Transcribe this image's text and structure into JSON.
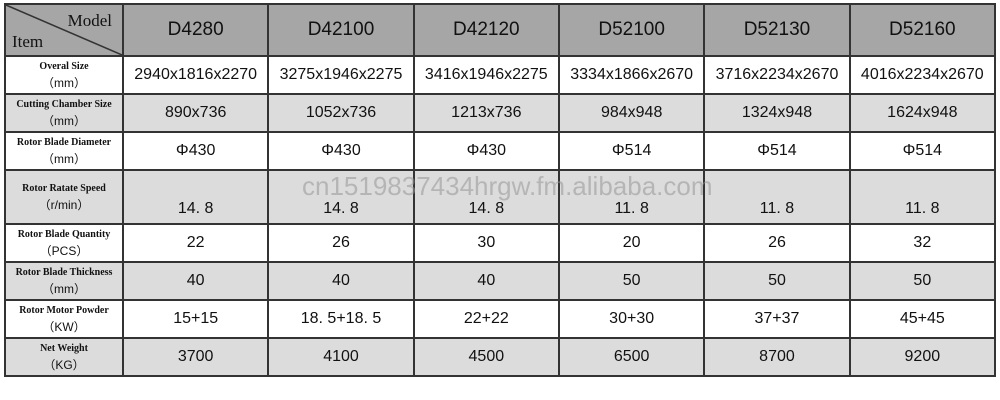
{
  "header": {
    "model_label": "Model",
    "item_label": "Item",
    "models": [
      "D4280",
      "D42100",
      "D42120",
      "D52100",
      "D52130",
      "D52160"
    ]
  },
  "rows": [
    {
      "label": "Overal Size",
      "unit": "（mm）",
      "values": [
        "2940x1816x2270",
        "3275x1946x2275",
        "3416x1946x2275",
        "3334x1866x2670",
        "3716x2234x2670",
        "4016x2234x2670"
      ]
    },
    {
      "label": "Cutting Chamber Size",
      "unit": "（mm）",
      "values": [
        "890x736",
        "1052x736",
        "1213x736",
        "984x948",
        "1324x948",
        "1624x948"
      ]
    },
    {
      "label": "Rotor Blade Diameter",
      "unit": "（mm）",
      "values": [
        "Φ430",
        "Φ430",
        "Φ430",
        "Φ514",
        "Φ514",
        "Φ514"
      ]
    },
    {
      "label": "Rotor Ratate Speed",
      "unit": "（r/min）",
      "values": [
        "14. 8",
        "14. 8",
        "14. 8",
        "11. 8",
        "11. 8",
        "11. 8"
      ]
    },
    {
      "label": "Rotor Blade Quantity",
      "unit": "（PCS）",
      "values": [
        "22",
        "26",
        "30",
        "20",
        "26",
        "32"
      ]
    },
    {
      "label": "Rotor Blade Thickness",
      "unit": "（mm）",
      "values": [
        "40",
        "40",
        "40",
        "50",
        "50",
        "50"
      ]
    },
    {
      "label": "Rotor Motor Powder",
      "unit": "（KW）",
      "values": [
        "15+15",
        "18. 5+18. 5",
        "22+22",
        "30+30",
        "37+37",
        "45+45"
      ]
    },
    {
      "label": "Net Weight",
      "unit": "（KG）",
      "values": [
        "3700",
        "4100",
        "4500",
        "6500",
        "8700",
        "9200"
      ]
    }
  ],
  "watermark": "cn1519837434hrgw.fm.alibaba.com"
}
